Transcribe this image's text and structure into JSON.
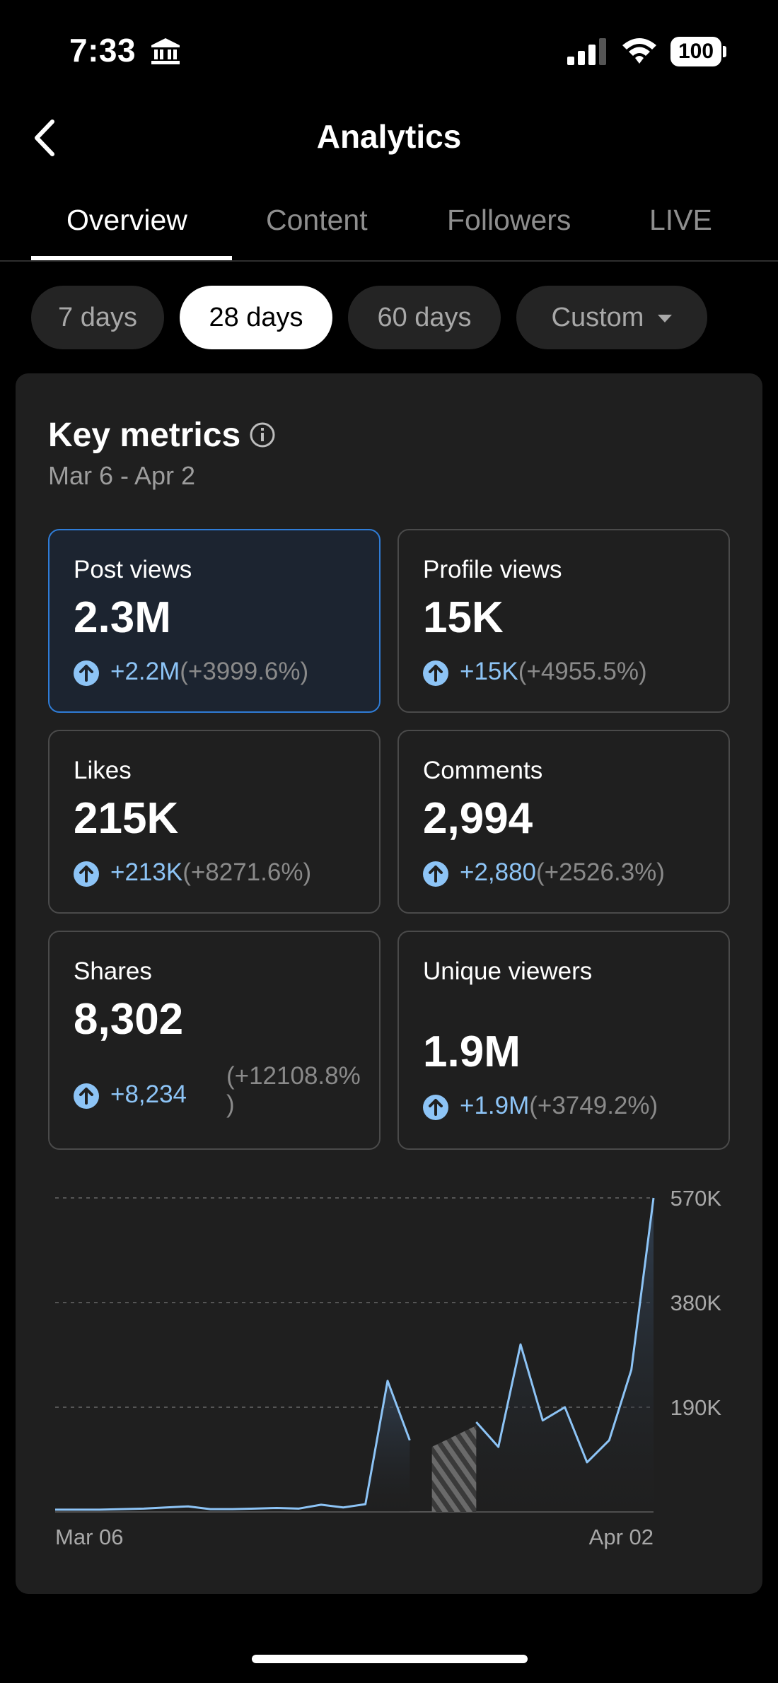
{
  "status_bar": {
    "time": "7:33",
    "battery": "100"
  },
  "header": {
    "title": "Analytics",
    "back_icon": "chevron-left-icon"
  },
  "tabs": [
    {
      "label": "Overview",
      "active": true
    },
    {
      "label": "Content",
      "active": false
    },
    {
      "label": "Followers",
      "active": false
    },
    {
      "label": "LIVE",
      "active": false
    }
  ],
  "ranges": [
    {
      "label": "7 days",
      "active": false
    },
    {
      "label": "28 days",
      "active": true
    },
    {
      "label": "60 days",
      "active": false
    },
    {
      "label": "Custom",
      "active": false
    }
  ],
  "key_metrics": {
    "title": "Key metrics",
    "date_range": "Mar 6 - Apr 2",
    "metrics": [
      {
        "label": "Post views",
        "value": "2.3M",
        "delta": "+2.2M",
        "pct": "(+3999.6%)",
        "selected": true
      },
      {
        "label": "Profile views",
        "value": "15K",
        "delta": "+15K",
        "pct": "(+4955.5%)",
        "selected": false
      },
      {
        "label": "Likes",
        "value": "215K",
        "delta": "+213K",
        "pct": "(+8271.6%)",
        "selected": false
      },
      {
        "label": "Comments",
        "value": "2,994",
        "delta": "+2,880",
        "pct": "(+2526.3%)",
        "selected": false
      },
      {
        "label": "Shares",
        "value": "8,302",
        "delta": "+8,234",
        "pct": "(+12108.8%",
        "pct_end": ")",
        "selected": false
      },
      {
        "label": "Unique viewers",
        "value": "1.9M",
        "delta": "+1.9M",
        "pct": "(+3749.2%)",
        "selected": false
      }
    ]
  },
  "accent_color": "#8dc4f6",
  "chart_data": {
    "type": "area",
    "ylim": [
      0,
      570000
    ],
    "yticks": [
      {
        "value": 570000,
        "label": "570K"
      },
      {
        "value": 380000,
        "label": "380K"
      },
      {
        "value": 190000,
        "label": "190K"
      }
    ],
    "x_labels": [
      "Mar 06",
      "Apr 02"
    ],
    "grid": true,
    "series": [
      {
        "values": [
          4000,
          4000,
          4000,
          5000,
          6000,
          8000,
          10000,
          5000,
          5000,
          6000,
          7000,
          6000,
          13000,
          8000,
          14000,
          238000,
          130000,
          null,
          null,
          163000,
          118000,
          304000,
          166000,
          190000,
          90000,
          130000,
          258000,
          570000
        ],
        "missing_days": [
          17,
          18
        ]
      }
    ]
  }
}
